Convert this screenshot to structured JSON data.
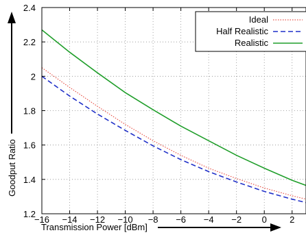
{
  "chart_data": {
    "type": "line",
    "title": "",
    "xlabel": "Transmission Power [dBm]",
    "ylabel": "Goodput Ratio",
    "xlim": [
      -16,
      3
    ],
    "ylim": [
      1.2,
      2.4
    ],
    "xticks": [
      -16,
      -14,
      -12,
      -10,
      -8,
      -6,
      -4,
      -2,
      0,
      2
    ],
    "xtick_labels": [
      "−16",
      "−14",
      "−12",
      "−10",
      "−8",
      "−6",
      "−4",
      "−2",
      "0",
      "2"
    ],
    "yticks": [
      1.2,
      1.4,
      1.6,
      1.8,
      2.0,
      2.2,
      2.4
    ],
    "ytick_labels": [
      "1.2",
      "1.4",
      "1.6",
      "1.8",
      "2",
      "2.2",
      "2.4"
    ],
    "grid": true,
    "legend_position": "top-right",
    "series": [
      {
        "name": "Ideal",
        "color": "#e8554a",
        "style": "dotted",
        "x": [
          -16,
          -14,
          -12,
          -10,
          -8,
          -6,
          -4,
          -2,
          0,
          2,
          3
        ],
        "y": [
          2.05,
          1.935,
          1.825,
          1.72,
          1.625,
          1.54,
          1.465,
          1.405,
          1.35,
          1.305,
          1.285
        ]
      },
      {
        "name": "Half Realistic",
        "color": "#1f2fc8",
        "style": "dashed",
        "x": [
          -16,
          -14,
          -12,
          -10,
          -8,
          -6,
          -4,
          -2,
          0,
          2,
          3
        ],
        "y": [
          2.0,
          1.885,
          1.78,
          1.685,
          1.595,
          1.515,
          1.445,
          1.385,
          1.33,
          1.285,
          1.265
        ]
      },
      {
        "name": "Realistic",
        "color": "#1f9e2a",
        "style": "solid",
        "x": [
          -16,
          -14,
          -12,
          -10,
          -8,
          -6,
          -4,
          -2,
          0,
          2,
          3
        ],
        "y": [
          2.27,
          2.14,
          2.02,
          1.905,
          1.805,
          1.71,
          1.625,
          1.54,
          1.465,
          1.395,
          1.365
        ]
      }
    ]
  }
}
